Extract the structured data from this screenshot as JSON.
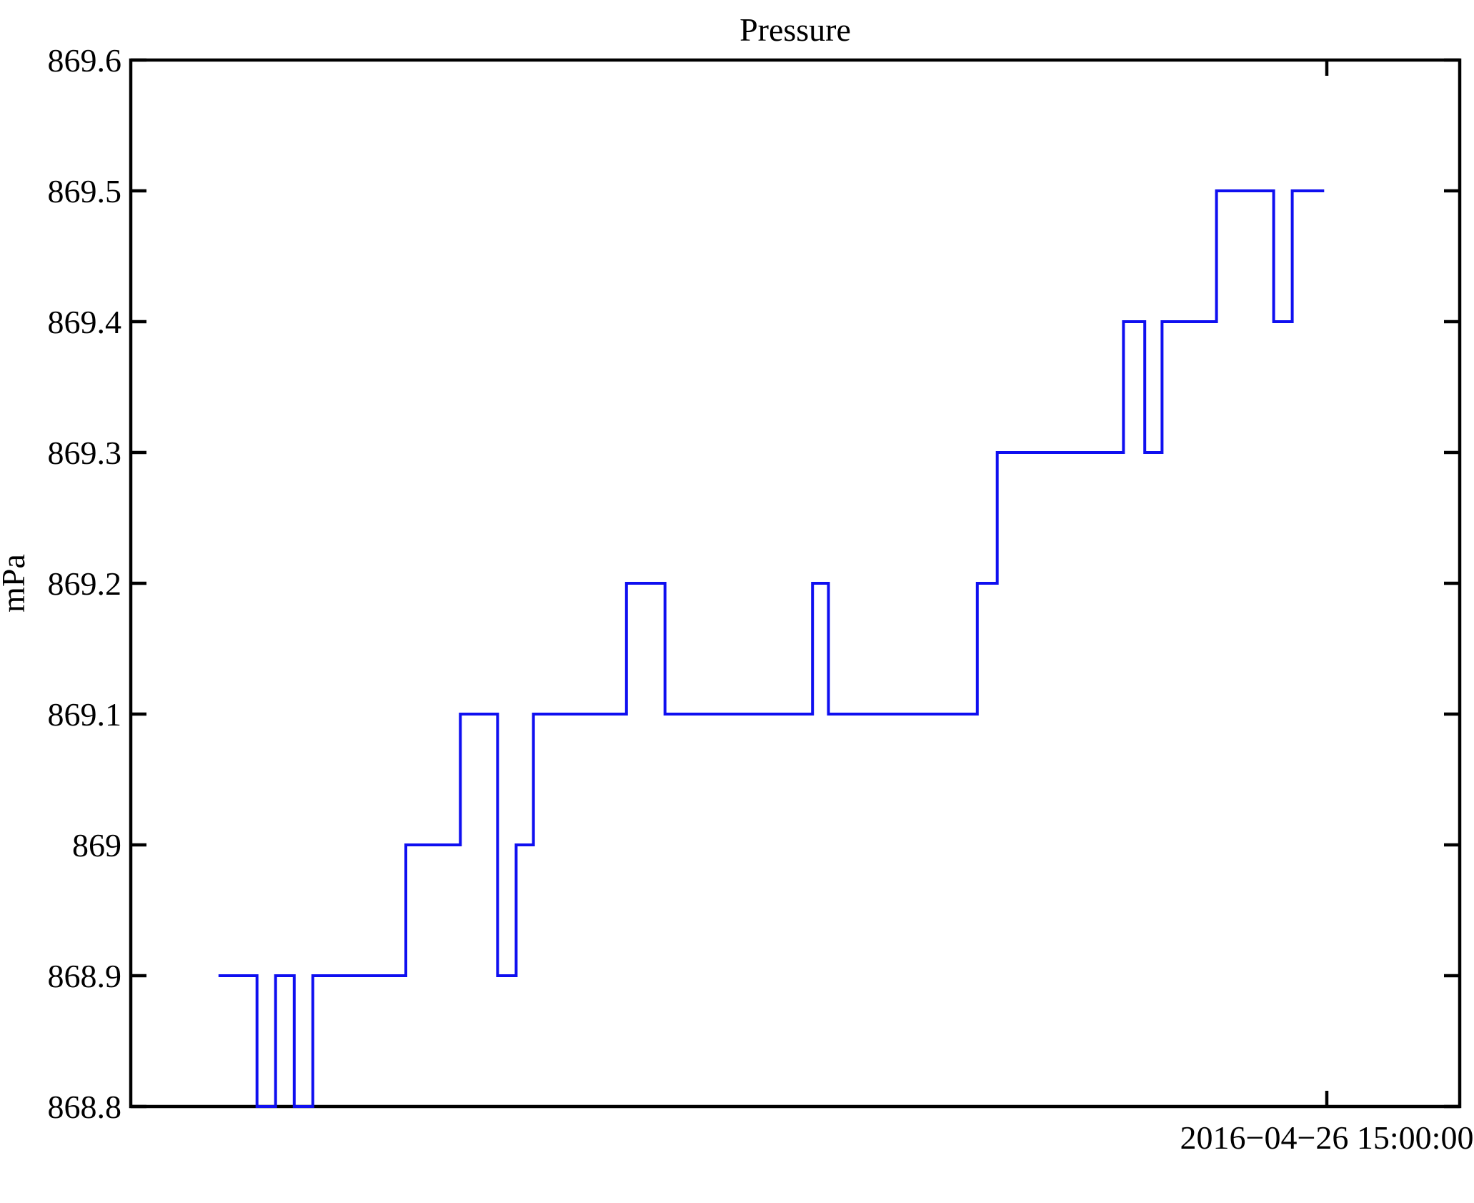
{
  "figure": {
    "background": "#ffffff",
    "axes_color": "#000000"
  },
  "chart_data": {
    "type": "line",
    "subtype": "step",
    "title": "Pressure",
    "xlabel": "",
    "ylabel": "mPa",
    "ylim": [
      868.8,
      869.6
    ],
    "grid": false,
    "legend": null,
    "line_color": "#0f0ff0",
    "y_ticks": [
      868.8,
      868.9,
      869,
      869.1,
      869.2,
      869.3,
      869.4,
      869.5,
      869.6
    ],
    "x_ticks": [
      {
        "label": "2016−04−26 15:00:00",
        "frac": 0.9
      }
    ],
    "steps_note": "level = pressure in mPa; from/to = fraction of x-axis width",
    "steps": [
      {
        "level": 868.9,
        "from": 0.066,
        "to": 0.095
      },
      {
        "level": 868.8,
        "from": 0.095,
        "to": 0.109
      },
      {
        "level": 868.9,
        "from": 0.109,
        "to": 0.123
      },
      {
        "level": 868.8,
        "from": 0.123,
        "to": 0.137
      },
      {
        "level": 868.9,
        "from": 0.137,
        "to": 0.207
      },
      {
        "level": 869.0,
        "from": 0.207,
        "to": 0.248
      },
      {
        "level": 869.1,
        "from": 0.248,
        "to": 0.276
      },
      {
        "level": 868.9,
        "from": 0.276,
        "to": 0.29
      },
      {
        "level": 869.0,
        "from": 0.29,
        "to": 0.303
      },
      {
        "level": 869.1,
        "from": 0.303,
        "to": 0.373
      },
      {
        "level": 869.2,
        "from": 0.373,
        "to": 0.402
      },
      {
        "level": 869.1,
        "from": 0.402,
        "to": 0.513
      },
      {
        "level": 869.2,
        "from": 0.513,
        "to": 0.525
      },
      {
        "level": 869.1,
        "from": 0.525,
        "to": 0.637
      },
      {
        "level": 869.2,
        "from": 0.637,
        "to": 0.652
      },
      {
        "level": 869.3,
        "from": 0.652,
        "to": 0.747
      },
      {
        "level": 869.4,
        "from": 0.747,
        "to": 0.763
      },
      {
        "level": 869.3,
        "from": 0.763,
        "to": 0.776
      },
      {
        "level": 869.4,
        "from": 0.776,
        "to": 0.817
      },
      {
        "level": 869.5,
        "from": 0.817,
        "to": 0.86
      },
      {
        "level": 869.4,
        "from": 0.86,
        "to": 0.874
      },
      {
        "level": 869.5,
        "from": 0.874,
        "to": 0.898
      }
    ]
  }
}
